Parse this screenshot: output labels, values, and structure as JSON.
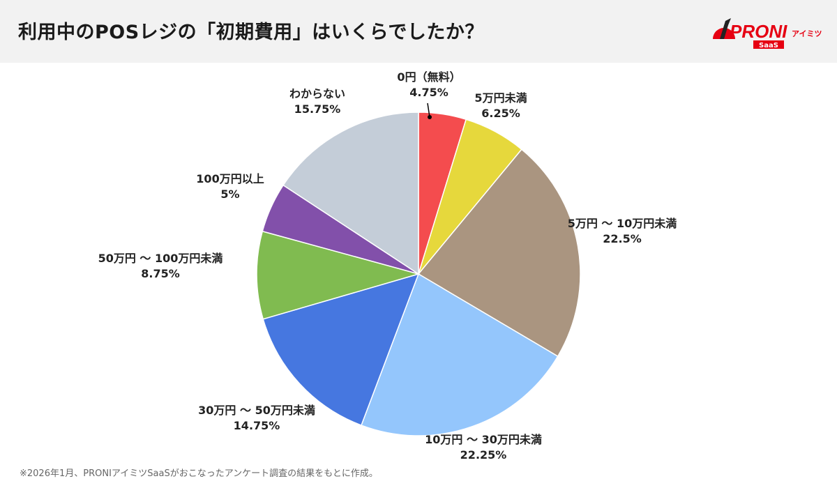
{
  "header": {
    "title": "利用中のPOSレジの「初期費用」はいくらでしたか？"
  },
  "logo": {
    "text": "PRONI",
    "sub": "アイミツ",
    "badge": "SaaS",
    "color": "#e60012"
  },
  "chart_data": {
    "type": "pie",
    "title": "利用中のPOSレジの「初期費用」はいくらでしたか？",
    "start": "top",
    "direction": "clockwise",
    "slices": [
      {
        "label": "0円（無料）",
        "value": 4.75,
        "display": "4.75%",
        "color": "#f44c4e"
      },
      {
        "label": "5万円未満",
        "value": 6.25,
        "display": "6.25%",
        "color": "#e6d83c"
      },
      {
        "label": "5万円 ～ 10万円未満",
        "value": 22.5,
        "display": "22.5%",
        "color": "#aa9580"
      },
      {
        "label": "10万円 ～ 30万円未満",
        "value": 22.25,
        "display": "22.25%",
        "color": "#94c6fc"
      },
      {
        "label": "30万円 ～ 50万円未満",
        "value": 14.75,
        "display": "14.75%",
        "color": "#4677e0"
      },
      {
        "label": "50万円 ～ 100万円未満",
        "value": 8.75,
        "display": "8.75%",
        "color": "#80bb50"
      },
      {
        "label": "100万円以上",
        "value": 5,
        "display": "5%",
        "color": "#8250aa"
      },
      {
        "label": "わからない",
        "value": 15.75,
        "display": "15.75%",
        "color": "#c4cdd8"
      }
    ]
  },
  "footer": {
    "note": "※2026年1月、PRONIアイミツSaaSがおこなったアンケート調査の結果をもとに作成。"
  }
}
